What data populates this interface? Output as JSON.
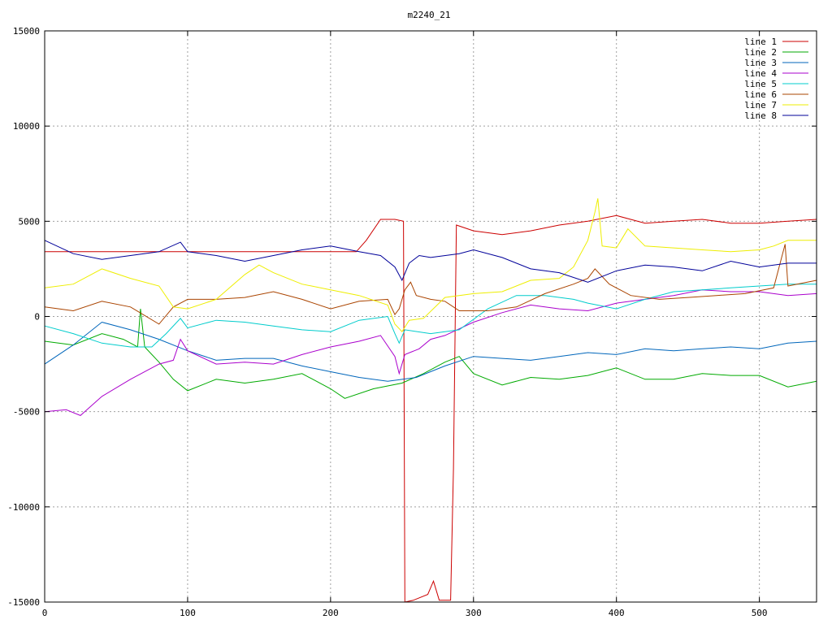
{
  "chart_data": {
    "type": "line",
    "title": "m2240_21",
    "xlabel": "",
    "ylabel": "",
    "xlim": [
      0,
      540
    ],
    "ylim": [
      -15000,
      15000
    ],
    "x_ticks": [
      0,
      100,
      200,
      300,
      400,
      500
    ],
    "y_ticks": [
      -15000,
      -10000,
      -5000,
      0,
      5000,
      10000,
      15000
    ],
    "grid": true,
    "legend_position": "top-right",
    "series": [
      {
        "name": "line 1",
        "color": "#cc0000",
        "points": [
          [
            0,
            3400
          ],
          [
            218,
            3400
          ],
          [
            225,
            4000
          ],
          [
            235,
            5100
          ],
          [
            245,
            5100
          ],
          [
            251,
            5000
          ],
          [
            252,
            -15000
          ],
          [
            258,
            -14900
          ],
          [
            268,
            -14600
          ],
          [
            272,
            -13900
          ],
          [
            276,
            -14900
          ],
          [
            284,
            -14900
          ],
          [
            286,
            -8000
          ],
          [
            288,
            4800
          ],
          [
            300,
            4500
          ],
          [
            320,
            4300
          ],
          [
            340,
            4500
          ],
          [
            360,
            4800
          ],
          [
            380,
            5000
          ],
          [
            400,
            5300
          ],
          [
            420,
            4900
          ],
          [
            440,
            5000
          ],
          [
            460,
            5100
          ],
          [
            480,
            4900
          ],
          [
            500,
            4900
          ],
          [
            520,
            5000
          ],
          [
            540,
            5100
          ]
        ]
      },
      {
        "name": "line 2",
        "color": "#00aa00",
        "points": [
          [
            0,
            -1300
          ],
          [
            20,
            -1500
          ],
          [
            40,
            -900
          ],
          [
            55,
            -1200
          ],
          [
            65,
            -1600
          ],
          [
            67,
            400
          ],
          [
            70,
            -1600
          ],
          [
            80,
            -2400
          ],
          [
            90,
            -3300
          ],
          [
            100,
            -3900
          ],
          [
            120,
            -3300
          ],
          [
            140,
            -3500
          ],
          [
            160,
            -3300
          ],
          [
            180,
            -3000
          ],
          [
            200,
            -3800
          ],
          [
            210,
            -4300
          ],
          [
            230,
            -3800
          ],
          [
            250,
            -3500
          ],
          [
            265,
            -3000
          ],
          [
            280,
            -2400
          ],
          [
            290,
            -2100
          ],
          [
            300,
            -3000
          ],
          [
            320,
            -3600
          ],
          [
            340,
            -3200
          ],
          [
            360,
            -3300
          ],
          [
            380,
            -3100
          ],
          [
            400,
            -2700
          ],
          [
            420,
            -3300
          ],
          [
            440,
            -3300
          ],
          [
            460,
            -3000
          ],
          [
            480,
            -3100
          ],
          [
            500,
            -3100
          ],
          [
            520,
            -3700
          ],
          [
            540,
            -3400
          ]
        ]
      },
      {
        "name": "line 3",
        "color": "#0066bb",
        "points": [
          [
            0,
            -2500
          ],
          [
            20,
            -1500
          ],
          [
            40,
            -300
          ],
          [
            60,
            -700
          ],
          [
            80,
            -1200
          ],
          [
            100,
            -1800
          ],
          [
            120,
            -2300
          ],
          [
            140,
            -2200
          ],
          [
            160,
            -2200
          ],
          [
            180,
            -2600
          ],
          [
            200,
            -2900
          ],
          [
            220,
            -3200
          ],
          [
            240,
            -3400
          ],
          [
            260,
            -3200
          ],
          [
            280,
            -2600
          ],
          [
            300,
            -2100
          ],
          [
            320,
            -2200
          ],
          [
            340,
            -2300
          ],
          [
            360,
            -2100
          ],
          [
            380,
            -1900
          ],
          [
            400,
            -2000
          ],
          [
            420,
            -1700
          ],
          [
            440,
            -1800
          ],
          [
            460,
            -1700
          ],
          [
            480,
            -1600
          ],
          [
            500,
            -1700
          ],
          [
            520,
            -1400
          ],
          [
            540,
            -1300
          ]
        ]
      },
      {
        "name": "line 4",
        "color": "#aa00cc",
        "points": [
          [
            0,
            -5000
          ],
          [
            15,
            -4900
          ],
          [
            25,
            -5200
          ],
          [
            40,
            -4200
          ],
          [
            60,
            -3300
          ],
          [
            80,
            -2500
          ],
          [
            90,
            -2300
          ],
          [
            95,
            -1200
          ],
          [
            100,
            -1800
          ],
          [
            120,
            -2500
          ],
          [
            140,
            -2400
          ],
          [
            160,
            -2500
          ],
          [
            180,
            -2000
          ],
          [
            200,
            -1600
          ],
          [
            220,
            -1300
          ],
          [
            235,
            -1000
          ],
          [
            245,
            -2100
          ],
          [
            248,
            -3000
          ],
          [
            252,
            -2000
          ],
          [
            262,
            -1700
          ],
          [
            270,
            -1200
          ],
          [
            280,
            -1000
          ],
          [
            300,
            -300
          ],
          [
            320,
            200
          ],
          [
            340,
            600
          ],
          [
            360,
            400
          ],
          [
            380,
            300
          ],
          [
            400,
            700
          ],
          [
            420,
            900
          ],
          [
            440,
            1100
          ],
          [
            460,
            1400
          ],
          [
            480,
            1300
          ],
          [
            500,
            1300
          ],
          [
            520,
            1100
          ],
          [
            540,
            1200
          ]
        ]
      },
      {
        "name": "line 5",
        "color": "#00cccc",
        "points": [
          [
            0,
            -500
          ],
          [
            20,
            -900
          ],
          [
            40,
            -1400
          ],
          [
            60,
            -1600
          ],
          [
            75,
            -1600
          ],
          [
            85,
            -900
          ],
          [
            95,
            -100
          ],
          [
            100,
            -600
          ],
          [
            120,
            -200
          ],
          [
            140,
            -300
          ],
          [
            160,
            -500
          ],
          [
            180,
            -700
          ],
          [
            200,
            -800
          ],
          [
            220,
            -200
          ],
          [
            240,
            0
          ],
          [
            245,
            -900
          ],
          [
            248,
            -1400
          ],
          [
            252,
            -700
          ],
          [
            270,
            -900
          ],
          [
            290,
            -700
          ],
          [
            310,
            400
          ],
          [
            330,
            1100
          ],
          [
            350,
            1100
          ],
          [
            370,
            900
          ],
          [
            380,
            700
          ],
          [
            400,
            400
          ],
          [
            420,
            900
          ],
          [
            440,
            1300
          ],
          [
            460,
            1400
          ],
          [
            480,
            1500
          ],
          [
            500,
            1600
          ],
          [
            520,
            1700
          ],
          [
            540,
            1700
          ]
        ]
      },
      {
        "name": "line 6",
        "color": "#aa4400",
        "points": [
          [
            0,
            500
          ],
          [
            20,
            300
          ],
          [
            40,
            800
          ],
          [
            60,
            500
          ],
          [
            80,
            -400
          ],
          [
            90,
            500
          ],
          [
            100,
            900
          ],
          [
            120,
            900
          ],
          [
            140,
            1000
          ],
          [
            160,
            1300
          ],
          [
            180,
            900
          ],
          [
            200,
            400
          ],
          [
            220,
            800
          ],
          [
            240,
            900
          ],
          [
            245,
            100
          ],
          [
            248,
            400
          ],
          [
            252,
            1400
          ],
          [
            256,
            1800
          ],
          [
            260,
            1100
          ],
          [
            270,
            900
          ],
          [
            280,
            800
          ],
          [
            290,
            300
          ],
          [
            310,
            300
          ],
          [
            330,
            500
          ],
          [
            350,
            1200
          ],
          [
            370,
            1700
          ],
          [
            380,
            2000
          ],
          [
            385,
            2500
          ],
          [
            395,
            1700
          ],
          [
            410,
            1100
          ],
          [
            430,
            900
          ],
          [
            450,
            1000
          ],
          [
            470,
            1100
          ],
          [
            490,
            1200
          ],
          [
            510,
            1500
          ],
          [
            518,
            3800
          ],
          [
            520,
            1600
          ],
          [
            540,
            1900
          ]
        ]
      },
      {
        "name": "line 7",
        "color": "#eeee00",
        "points": [
          [
            0,
            1500
          ],
          [
            20,
            1700
          ],
          [
            40,
            2500
          ],
          [
            60,
            2000
          ],
          [
            80,
            1600
          ],
          [
            90,
            500
          ],
          [
            100,
            400
          ],
          [
            120,
            900
          ],
          [
            140,
            2200
          ],
          [
            150,
            2700
          ],
          [
            160,
            2300
          ],
          [
            180,
            1700
          ],
          [
            200,
            1400
          ],
          [
            220,
            1100
          ],
          [
            240,
            600
          ],
          [
            245,
            -400
          ],
          [
            250,
            -800
          ],
          [
            255,
            -200
          ],
          [
            265,
            -100
          ],
          [
            280,
            1000
          ],
          [
            300,
            1200
          ],
          [
            320,
            1300
          ],
          [
            340,
            1900
          ],
          [
            360,
            2000
          ],
          [
            370,
            2600
          ],
          [
            380,
            4000
          ],
          [
            385,
            5500
          ],
          [
            387,
            6200
          ],
          [
            390,
            3700
          ],
          [
            400,
            3600
          ],
          [
            408,
            4600
          ],
          [
            420,
            3700
          ],
          [
            440,
            3600
          ],
          [
            460,
            3500
          ],
          [
            480,
            3400
          ],
          [
            500,
            3500
          ],
          [
            510,
            3700
          ],
          [
            520,
            4000
          ],
          [
            540,
            4000
          ]
        ]
      },
      {
        "name": "line 8",
        "color": "#000099",
        "points": [
          [
            0,
            4000
          ],
          [
            20,
            3300
          ],
          [
            40,
            3000
          ],
          [
            60,
            3200
          ],
          [
            80,
            3400
          ],
          [
            95,
            3900
          ],
          [
            100,
            3400
          ],
          [
            120,
            3200
          ],
          [
            140,
            2900
          ],
          [
            160,
            3200
          ],
          [
            180,
            3500
          ],
          [
            200,
            3700
          ],
          [
            220,
            3400
          ],
          [
            235,
            3200
          ],
          [
            245,
            2600
          ],
          [
            250,
            1900
          ],
          [
            255,
            2800
          ],
          [
            262,
            3200
          ],
          [
            270,
            3100
          ],
          [
            290,
            3300
          ],
          [
            300,
            3500
          ],
          [
            320,
            3100
          ],
          [
            340,
            2500
          ],
          [
            360,
            2300
          ],
          [
            380,
            1800
          ],
          [
            400,
            2400
          ],
          [
            420,
            2700
          ],
          [
            440,
            2600
          ],
          [
            460,
            2400
          ],
          [
            480,
            2900
          ],
          [
            500,
            2600
          ],
          [
            520,
            2800
          ],
          [
            540,
            2800
          ]
        ]
      }
    ]
  }
}
